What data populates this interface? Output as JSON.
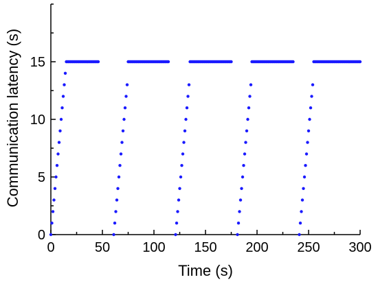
{
  "chart_data": {
    "type": "scatter",
    "title": "",
    "xlabel": "Time (s)",
    "ylabel": "Communication latency (s)",
    "xlim": [
      0,
      300
    ],
    "ylim": [
      0,
      20
    ],
    "xticks": [
      "0",
      "50",
      "100",
      "150",
      "200",
      "250",
      "300"
    ],
    "yticks": [
      "0",
      "5",
      "10",
      "15"
    ],
    "grid": false,
    "legend": "none",
    "marker_color": "#1a1aff",
    "series": [
      {
        "points": [
          [
            0,
            0
          ],
          [
            1,
            1
          ],
          [
            2,
            2
          ],
          [
            3,
            3
          ],
          [
            4,
            4
          ],
          [
            5,
            5
          ],
          [
            6,
            6
          ],
          [
            7,
            7
          ],
          [
            8,
            8
          ],
          [
            9,
            9
          ],
          [
            10,
            10
          ],
          [
            11,
            11
          ],
          [
            12,
            12
          ],
          [
            13,
            13
          ],
          [
            14,
            14
          ],
          [
            15,
            15
          ],
          [
            16,
            15
          ],
          [
            17,
            15
          ],
          [
            18,
            15
          ],
          [
            19,
            15
          ],
          [
            20,
            15
          ],
          [
            21,
            15
          ],
          [
            22,
            15
          ],
          [
            23,
            15
          ],
          [
            24,
            15
          ],
          [
            25,
            15
          ],
          [
            26,
            15
          ],
          [
            27,
            15
          ],
          [
            28,
            15
          ],
          [
            29,
            15
          ],
          [
            30,
            15
          ],
          [
            31,
            15
          ],
          [
            32,
            15
          ],
          [
            33,
            15
          ],
          [
            34,
            15
          ],
          [
            35,
            15
          ],
          [
            36,
            15
          ],
          [
            37,
            15
          ],
          [
            38,
            15
          ],
          [
            39,
            15
          ],
          [
            40,
            15
          ],
          [
            41,
            15
          ],
          [
            42,
            15
          ],
          [
            43,
            15
          ],
          [
            44,
            15
          ],
          [
            45,
            15
          ],
          [
            46,
            15
          ],
          [
            61,
            0
          ],
          [
            62,
            1
          ],
          [
            63,
            2
          ],
          [
            64,
            3
          ],
          [
            65,
            4
          ],
          [
            66,
            5
          ],
          [
            67,
            6
          ],
          [
            68,
            7
          ],
          [
            69,
            8
          ],
          [
            70,
            9
          ],
          [
            71,
            10
          ],
          [
            72,
            11
          ],
          [
            73,
            12
          ],
          [
            74,
            13
          ],
          [
            75,
            15
          ],
          [
            76,
            15
          ],
          [
            77,
            15
          ],
          [
            78,
            15
          ],
          [
            79,
            15
          ],
          [
            80,
            15
          ],
          [
            81,
            15
          ],
          [
            82,
            15
          ],
          [
            83,
            15
          ],
          [
            84,
            15
          ],
          [
            85,
            15
          ],
          [
            86,
            15
          ],
          [
            87,
            15
          ],
          [
            88,
            15
          ],
          [
            89,
            15
          ],
          [
            90,
            15
          ],
          [
            91,
            15
          ],
          [
            92,
            15
          ],
          [
            93,
            15
          ],
          [
            94,
            15
          ],
          [
            95,
            15
          ],
          [
            96,
            15
          ],
          [
            97,
            15
          ],
          [
            98,
            15
          ],
          [
            99,
            15
          ],
          [
            100,
            15
          ],
          [
            101,
            15
          ],
          [
            102,
            15
          ],
          [
            103,
            15
          ],
          [
            104,
            15
          ],
          [
            105,
            15
          ],
          [
            106,
            15
          ],
          [
            107,
            15
          ],
          [
            108,
            15
          ],
          [
            109,
            15
          ],
          [
            110,
            15
          ],
          [
            111,
            15
          ],
          [
            112,
            15
          ],
          [
            113,
            15
          ],
          [
            114,
            15
          ],
          [
            121,
            0
          ],
          [
            122,
            1
          ],
          [
            123,
            2
          ],
          [
            124,
            3
          ],
          [
            125,
            4
          ],
          [
            126,
            5
          ],
          [
            127,
            6
          ],
          [
            128,
            7
          ],
          [
            129,
            8
          ],
          [
            130,
            9
          ],
          [
            131,
            10
          ],
          [
            132,
            11
          ],
          [
            133,
            12
          ],
          [
            134,
            13
          ],
          [
            135,
            15
          ],
          [
            136,
            15
          ],
          [
            137,
            15
          ],
          [
            138,
            15
          ],
          [
            139,
            15
          ],
          [
            140,
            15
          ],
          [
            141,
            15
          ],
          [
            142,
            15
          ],
          [
            143,
            15
          ],
          [
            144,
            15
          ],
          [
            145,
            15
          ],
          [
            146,
            15
          ],
          [
            147,
            15
          ],
          [
            148,
            15
          ],
          [
            149,
            15
          ],
          [
            150,
            15
          ],
          [
            151,
            15
          ],
          [
            152,
            15
          ],
          [
            153,
            15
          ],
          [
            154,
            15
          ],
          [
            155,
            15
          ],
          [
            156,
            15
          ],
          [
            157,
            15
          ],
          [
            158,
            15
          ],
          [
            159,
            15
          ],
          [
            160,
            15
          ],
          [
            161,
            15
          ],
          [
            162,
            15
          ],
          [
            163,
            15
          ],
          [
            164,
            15
          ],
          [
            165,
            15
          ],
          [
            166,
            15
          ],
          [
            167,
            15
          ],
          [
            168,
            15
          ],
          [
            169,
            15
          ],
          [
            170,
            15
          ],
          [
            171,
            15
          ],
          [
            172,
            15
          ],
          [
            173,
            15
          ],
          [
            174,
            15
          ],
          [
            175,
            15
          ],
          [
            181,
            0
          ],
          [
            182,
            1
          ],
          [
            183,
            2
          ],
          [
            184,
            3
          ],
          [
            185,
            4
          ],
          [
            186,
            5
          ],
          [
            187,
            6
          ],
          [
            188,
            7
          ],
          [
            189,
            8
          ],
          [
            190,
            9
          ],
          [
            191,
            10
          ],
          [
            192,
            11
          ],
          [
            193,
            12
          ],
          [
            194,
            13
          ],
          [
            195,
            15
          ],
          [
            196,
            15
          ],
          [
            197,
            15
          ],
          [
            198,
            15
          ],
          [
            199,
            15
          ],
          [
            200,
            15
          ],
          [
            201,
            15
          ],
          [
            202,
            15
          ],
          [
            203,
            15
          ],
          [
            204,
            15
          ],
          [
            205,
            15
          ],
          [
            206,
            15
          ],
          [
            207,
            15
          ],
          [
            208,
            15
          ],
          [
            209,
            15
          ],
          [
            210,
            15
          ],
          [
            211,
            15
          ],
          [
            212,
            15
          ],
          [
            213,
            15
          ],
          [
            214,
            15
          ],
          [
            215,
            15
          ],
          [
            216,
            15
          ],
          [
            217,
            15
          ],
          [
            218,
            15
          ],
          [
            219,
            15
          ],
          [
            220,
            15
          ],
          [
            221,
            15
          ],
          [
            222,
            15
          ],
          [
            223,
            15
          ],
          [
            224,
            15
          ],
          [
            225,
            15
          ],
          [
            226,
            15
          ],
          [
            227,
            15
          ],
          [
            228,
            15
          ],
          [
            229,
            15
          ],
          [
            230,
            15
          ],
          [
            231,
            15
          ],
          [
            232,
            15
          ],
          [
            233,
            15
          ],
          [
            234,
            15
          ],
          [
            235,
            15
          ],
          [
            241,
            0
          ],
          [
            242,
            1
          ],
          [
            243,
            2
          ],
          [
            244,
            3
          ],
          [
            245,
            4
          ],
          [
            246,
            5
          ],
          [
            247,
            6
          ],
          [
            248,
            7
          ],
          [
            249,
            8
          ],
          [
            250,
            9
          ],
          [
            251,
            10
          ],
          [
            252,
            11
          ],
          [
            253,
            12
          ],
          [
            254,
            13
          ],
          [
            255,
            15
          ],
          [
            256,
            15
          ],
          [
            257,
            15
          ],
          [
            258,
            15
          ],
          [
            259,
            15
          ],
          [
            260,
            15
          ],
          [
            261,
            15
          ],
          [
            262,
            15
          ],
          [
            263,
            15
          ],
          [
            264,
            15
          ],
          [
            265,
            15
          ],
          [
            266,
            15
          ],
          [
            267,
            15
          ],
          [
            268,
            15
          ],
          [
            269,
            15
          ],
          [
            270,
            15
          ],
          [
            271,
            15
          ],
          [
            272,
            15
          ],
          [
            273,
            15
          ],
          [
            274,
            15
          ],
          [
            275,
            15
          ],
          [
            276,
            15
          ],
          [
            277,
            15
          ],
          [
            278,
            15
          ],
          [
            279,
            15
          ],
          [
            280,
            15
          ],
          [
            281,
            15
          ],
          [
            282,
            15
          ],
          [
            283,
            15
          ],
          [
            284,
            15
          ],
          [
            285,
            15
          ],
          [
            286,
            15
          ],
          [
            287,
            15
          ],
          [
            288,
            15
          ],
          [
            289,
            15
          ],
          [
            290,
            15
          ],
          [
            291,
            15
          ],
          [
            292,
            15
          ],
          [
            293,
            15
          ],
          [
            294,
            15
          ],
          [
            295,
            15
          ],
          [
            296,
            15
          ],
          [
            297,
            15
          ],
          [
            298,
            15
          ],
          [
            299,
            15
          ],
          [
            300,
            15
          ]
        ]
      }
    ]
  }
}
